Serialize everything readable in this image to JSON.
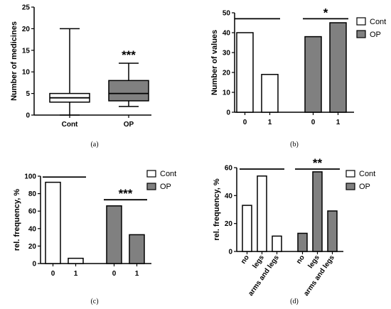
{
  "chart_data": [
    {
      "type": "box",
      "panel_label": "(a)",
      "categories": [
        "Cont",
        "OP"
      ],
      "ylabel": "Number of medicines",
      "xlabel": "",
      "ylim": [
        0,
        25
      ],
      "yticks": [
        0,
        5,
        10,
        15,
        20,
        25
      ],
      "series": [
        {
          "min": 0,
          "q1": 3,
          "median": 4,
          "q3": 5,
          "max": 20,
          "fill": "#ffffff"
        },
        {
          "min": 2,
          "q1": 3.3,
          "median": 5,
          "q3": 8,
          "max": 12,
          "fill": "#808080"
        }
      ],
      "annotations": [
        {
          "text": "***",
          "category": "OP",
          "y": 14
        }
      ]
    },
    {
      "type": "bar",
      "panel_label": "(b)",
      "ylabel": "Number of values",
      "xlabel": "",
      "ylim": [
        0,
        50
      ],
      "yticks": [
        0,
        10,
        20,
        30,
        40,
        50
      ],
      "groups": [
        {
          "name": "Cont",
          "color": "#ffffff",
          "categories": [
            "0",
            "1"
          ],
          "values": [
            40,
            19
          ]
        },
        {
          "name": "OP",
          "color": "#808080",
          "categories": [
            "0",
            "1"
          ],
          "values": [
            38,
            45
          ]
        }
      ],
      "significance": [
        {
          "text": "*",
          "group": "OP",
          "y": 47
        }
      ],
      "brackets": [
        {
          "group": "Cont",
          "y": 47
        },
        {
          "group": "OP",
          "y": 47
        }
      ],
      "legend": {
        "position": "top-right",
        "entries": [
          "Cont",
          "OP"
        ]
      }
    },
    {
      "type": "bar",
      "panel_label": "(c)",
      "ylabel": "rel. frequency, %",
      "xlabel": "",
      "ylim": [
        0,
        100
      ],
      "yticks": [
        0,
        20,
        40,
        60,
        80,
        100
      ],
      "groups": [
        {
          "name": "Cont",
          "color": "#ffffff",
          "categories": [
            "0",
            "1"
          ],
          "values": [
            93,
            6
          ]
        },
        {
          "name": "OP",
          "color": "#808080",
          "categories": [
            "0",
            "1"
          ],
          "values": [
            66,
            33
          ]
        }
      ],
      "significance": [
        {
          "text": "***",
          "group": "OP",
          "y": 73
        }
      ],
      "brackets": [
        {
          "group": "Cont",
          "y": 99
        },
        {
          "group": "OP",
          "y": 73
        }
      ],
      "legend": {
        "position": "top-right",
        "entries": [
          "Cont",
          "OP"
        ]
      }
    },
    {
      "type": "bar",
      "panel_label": "(d)",
      "ylabel": "rel. frequency, %",
      "xlabel": "",
      "ylim": [
        0,
        60
      ],
      "yticks": [
        0,
        20,
        40,
        60
      ],
      "groups": [
        {
          "name": "Cont",
          "color": "#ffffff",
          "categories": [
            "no",
            "legs",
            "arms and legs"
          ],
          "values": [
            33,
            54,
            11
          ]
        },
        {
          "name": "OP",
          "color": "#808080",
          "categories": [
            "no",
            "legs",
            "arms and legs"
          ],
          "values": [
            13,
            57,
            29
          ]
        }
      ],
      "significance": [
        {
          "text": "**",
          "group": "OP",
          "y": 59
        }
      ],
      "brackets": [
        {
          "group": "Cont",
          "y": 59
        },
        {
          "group": "OP",
          "y": 59
        }
      ],
      "legend": {
        "position": "top-right",
        "entries": [
          "Cont",
          "OP"
        ]
      }
    }
  ]
}
